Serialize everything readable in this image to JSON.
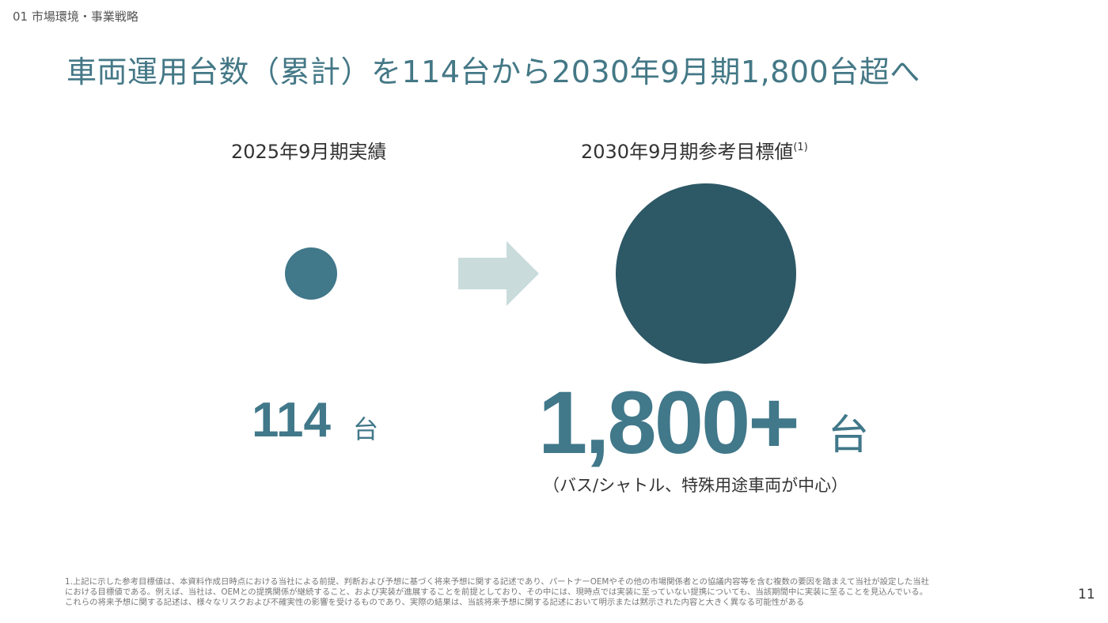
{
  "header": {
    "section": "01 市場環境・事業戦略",
    "title": "車両運用台数（累計）を114台から2030年9月期1,800台超へ"
  },
  "left": {
    "heading": "2025年9月期実績",
    "value": "114",
    "unit": "台"
  },
  "right": {
    "heading": "2030年9月期参考目標値",
    "note_ref": "(1)",
    "value": "1,800+",
    "unit": "台",
    "caption": "（バス/シャトル、特殊用途車両が中心）"
  },
  "footnote": {
    "number": "1.",
    "lines": [
      "上記に示した参考目標値は、本資料作成日時点における当社による前提、判断および予想に基づく将来予想に関する記述であり、パートナーOEMやその他の市場関係者との協議内容等を含む複数の要因を踏まえて当社が設定した当社",
      "における目標値である。例えば、当社は、OEMとの提携関係が継続すること、および実装が進展することを前提としており、その中には、現時点では実装に至っていない提携についても、当該期間中に実装に至ることを見込んでいる。",
      "これらの将来予想に関する記述は、様々なリスクおよび不確実性の影響を受けるものであり、実際の結果は、当該将来予想に関する記述において明示または黙示された内容と大きく異なる可能性がある"
    ]
  },
  "page_number": "11"
}
